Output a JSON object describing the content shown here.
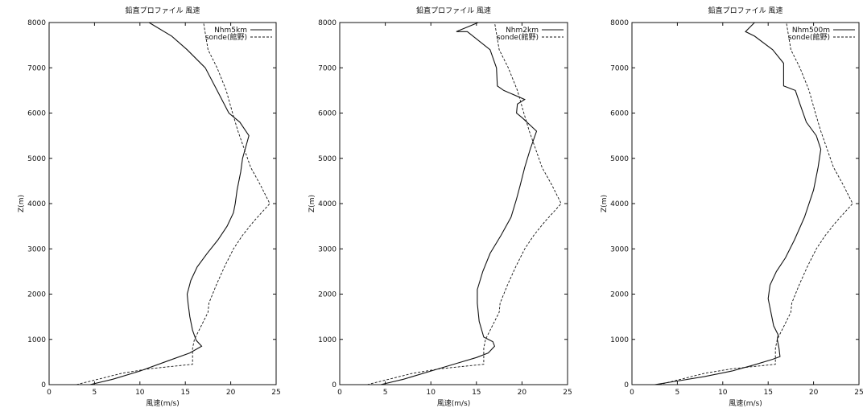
{
  "chart_data": [
    {
      "type": "line",
      "title": "鉛直プロファイル 風速",
      "xlabel": "風速(m/s)",
      "ylabel": "Z(m)",
      "xlim": [
        0,
        25
      ],
      "ylim": [
        0,
        8000
      ],
      "xticks": [
        0,
        5,
        10,
        15,
        20,
        25
      ],
      "yticks": [
        0,
        1000,
        2000,
        3000,
        4000,
        5000,
        6000,
        7000,
        8000
      ],
      "grid": false,
      "legend": "top-right",
      "series": [
        {
          "name": "Nhm5km",
          "style": "solid",
          "points": [
            [
              4.5,
              0
            ],
            [
              7,
              120
            ],
            [
              10,
              300
            ],
            [
              13,
              520
            ],
            [
              15.5,
              700
            ],
            [
              16.8,
              850
            ],
            [
              16.2,
              980
            ],
            [
              15.8,
              1200
            ],
            [
              15.5,
              1500
            ],
            [
              15.3,
              1800
            ],
            [
              15.2,
              2000
            ],
            [
              15.6,
              2300
            ],
            [
              16.3,
              2600
            ],
            [
              17.4,
              2900
            ],
            [
              18.6,
              3200
            ],
            [
              19.6,
              3500
            ],
            [
              20.3,
              3800
            ],
            [
              20.5,
              4000
            ],
            [
              20.7,
              4300
            ],
            [
              21.1,
              4700
            ],
            [
              21.3,
              5000
            ],
            [
              22.0,
              5500
            ],
            [
              21.0,
              5800
            ],
            [
              19.8,
              6000
            ],
            [
              18.5,
              6500
            ],
            [
              17.2,
              7000
            ],
            [
              15.2,
              7400
            ],
            [
              13.5,
              7700
            ],
            [
              11.0,
              8000
            ]
          ]
        },
        {
          "name": "sonde(館野)",
          "style": "dashed",
          "points": [
            [
              3,
              0
            ],
            [
              5,
              100
            ],
            [
              8,
              250
            ],
            [
              11,
              350
            ],
            [
              15.8,
              450
            ],
            [
              15.8,
              800
            ],
            [
              16,
              1000
            ],
            [
              17,
              1400
            ],
            [
              17.5,
              1600
            ],
            [
              17.6,
              1800
            ],
            [
              18.4,
              2200
            ],
            [
              19.3,
              2600
            ],
            [
              20.3,
              3000
            ],
            [
              21.3,
              3300
            ],
            [
              22.5,
              3600
            ],
            [
              24.3,
              4000
            ],
            [
              23.3,
              4400
            ],
            [
              22.2,
              4800
            ],
            [
              21.5,
              5200
            ],
            [
              20.8,
              5600
            ],
            [
              20.2,
              6000
            ],
            [
              19.5,
              6500
            ],
            [
              18.5,
              7000
            ],
            [
              17.5,
              7400
            ],
            [
              17,
              8000
            ]
          ]
        }
      ]
    },
    {
      "type": "line",
      "title": "鉛直プロファイル 風速",
      "xlabel": "風速(m/s)",
      "ylabel": "Z(m)",
      "xlim": [
        0,
        25
      ],
      "ylim": [
        0,
        8000
      ],
      "xticks": [
        0,
        5,
        10,
        15,
        20,
        25
      ],
      "yticks": [
        0,
        1000,
        2000,
        3000,
        4000,
        5000,
        6000,
        7000,
        8000
      ],
      "grid": false,
      "legend": "top-right",
      "series": [
        {
          "name": "Nhm2km",
          "style": "solid",
          "points": [
            [
              4.5,
              0
            ],
            [
              7,
              120
            ],
            [
              10,
              300
            ],
            [
              13,
              480
            ],
            [
              15,
              600
            ],
            [
              16.3,
              700
            ],
            [
              17,
              850
            ],
            [
              16.8,
              950
            ],
            [
              15.8,
              1050
            ],
            [
              15.3,
              1400
            ],
            [
              15.1,
              1800
            ],
            [
              15.1,
              2100
            ],
            [
              15.7,
              2500
            ],
            [
              16.5,
              2900
            ],
            [
              17.7,
              3300
            ],
            [
              18.8,
              3700
            ],
            [
              19.4,
              4100
            ],
            [
              19.8,
              4400
            ],
            [
              20.3,
              4800
            ],
            [
              20.9,
              5200
            ],
            [
              21.6,
              5600
            ],
            [
              20.0,
              5900
            ],
            [
              19.4,
              6000
            ],
            [
              19.5,
              6200
            ],
            [
              20.3,
              6300
            ],
            [
              18.0,
              6500
            ],
            [
              17.3,
              6600
            ],
            [
              17.2,
              7000
            ],
            [
              16.5,
              7400
            ],
            [
              14.0,
              7800
            ],
            [
              12.8,
              7800
            ],
            [
              15.2,
              8000
            ]
          ]
        },
        {
          "name": "sonde(館野)",
          "style": "dashed",
          "points": [
            [
              3,
              0
            ],
            [
              5,
              100
            ],
            [
              8,
              250
            ],
            [
              11,
              350
            ],
            [
              15.8,
              450
            ],
            [
              15.8,
              800
            ],
            [
              16,
              1000
            ],
            [
              17,
              1400
            ],
            [
              17.5,
              1600
            ],
            [
              17.6,
              1800
            ],
            [
              18.4,
              2200
            ],
            [
              19.3,
              2600
            ],
            [
              20.3,
              3000
            ],
            [
              21.3,
              3300
            ],
            [
              22.5,
              3600
            ],
            [
              24.3,
              4000
            ],
            [
              23.3,
              4400
            ],
            [
              22.2,
              4800
            ],
            [
              21.5,
              5200
            ],
            [
              20.8,
              5600
            ],
            [
              20.2,
              6000
            ],
            [
              19.5,
              6500
            ],
            [
              18.5,
              7000
            ],
            [
              17.5,
              7400
            ],
            [
              17,
              8000
            ]
          ]
        }
      ]
    },
    {
      "type": "line",
      "title": "鉛直プロファイル 風速",
      "xlabel": "風速(m/s)",
      "ylabel": "Z(m)",
      "xlim": [
        0,
        25
      ],
      "ylim": [
        0,
        8000
      ],
      "xticks": [
        0,
        5,
        10,
        15,
        20,
        25
      ],
      "yticks": [
        0,
        1000,
        2000,
        3000,
        4000,
        5000,
        6000,
        7000,
        8000
      ],
      "grid": false,
      "legend": "top-right",
      "series": [
        {
          "name": "Nhm500m",
          "style": "solid",
          "points": [
            [
              2.5,
              0
            ],
            [
              5,
              80
            ],
            [
              8,
              180
            ],
            [
              11,
              300
            ],
            [
              13.5,
              440
            ],
            [
              15.5,
              560
            ],
            [
              16.3,
              620
            ],
            [
              16.2,
              800
            ],
            [
              16,
              1000
            ],
            [
              16.1,
              1100
            ],
            [
              15.6,
              1300
            ],
            [
              15.3,
              1600
            ],
            [
              15,
              1900
            ],
            [
              15.2,
              2200
            ],
            [
              15.9,
              2500
            ],
            [
              16.9,
              2800
            ],
            [
              17.9,
              3200
            ],
            [
              19.0,
              3700
            ],
            [
              20.0,
              4300
            ],
            [
              20.5,
              4800
            ],
            [
              20.8,
              5200
            ],
            [
              20.3,
              5500
            ],
            [
              19.2,
              5800
            ],
            [
              18.5,
              6200
            ],
            [
              18.0,
              6500
            ],
            [
              16.7,
              6600
            ],
            [
              16.7,
              7100
            ],
            [
              15.5,
              7400
            ],
            [
              13.5,
              7700
            ],
            [
              12.5,
              7800
            ],
            [
              13.5,
              8000
            ]
          ]
        },
        {
          "name": "sonde(館野)",
          "style": "dashed",
          "points": [
            [
              3,
              0
            ],
            [
              5,
              100
            ],
            [
              8,
              250
            ],
            [
              11,
              350
            ],
            [
              15.8,
              450
            ],
            [
              15.8,
              800
            ],
            [
              16,
              1000
            ],
            [
              17,
              1400
            ],
            [
              17.5,
              1600
            ],
            [
              17.6,
              1800
            ],
            [
              18.4,
              2200
            ],
            [
              19.3,
              2600
            ],
            [
              20.3,
              3000
            ],
            [
              21.3,
              3300
            ],
            [
              22.5,
              3600
            ],
            [
              24.3,
              4000
            ],
            [
              23.3,
              4400
            ],
            [
              22.2,
              4800
            ],
            [
              21.5,
              5200
            ],
            [
              20.8,
              5600
            ],
            [
              20.2,
              6000
            ],
            [
              19.5,
              6500
            ],
            [
              18.5,
              7000
            ],
            [
              17.5,
              7400
            ],
            [
              17,
              8000
            ]
          ]
        }
      ]
    }
  ]
}
